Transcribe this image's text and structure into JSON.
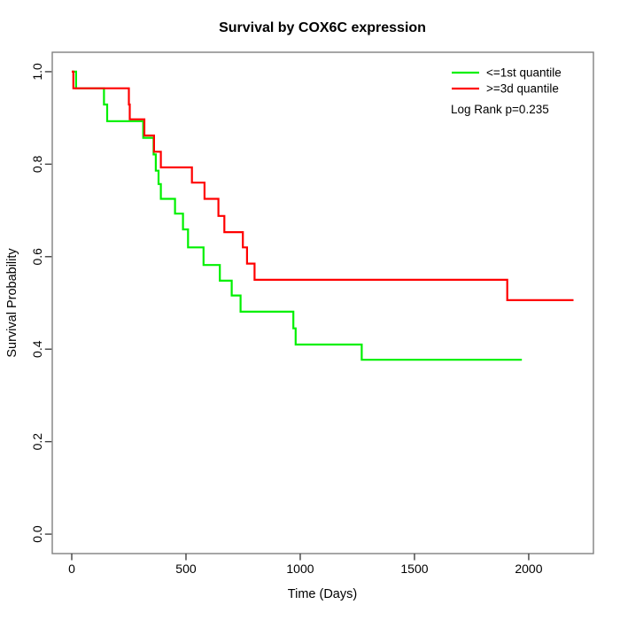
{
  "title": "Survival by COX6C expression",
  "x_axis": {
    "label": "Time (Days)",
    "tick_labels": [
      "0",
      "500",
      "1000",
      "1500",
      "2000"
    ]
  },
  "y_axis": {
    "label": "Survival Probability",
    "tick_labels": [
      "0.0",
      "0.2",
      "0.4",
      "0.6",
      "0.8",
      "1.0"
    ]
  },
  "legend": {
    "entries": [
      {
        "label": "<=1st quantile",
        "color": "#00f000"
      },
      {
        "label": ">=3d quantile",
        "color": "#ff0000"
      }
    ],
    "note": "Log Rank p=0.235"
  },
  "chart_data": {
    "type": "line",
    "subtype": "kaplan-meier-step",
    "title": "Survival by COX6C expression",
    "xlabel": "Time (Days)",
    "ylabel": "Survival Probability",
    "xlim": [
      -88,
      2284
    ],
    "ylim": [
      -0.042,
      1.042
    ],
    "x_ticks": [
      0,
      500,
      1000,
      1500,
      2000
    ],
    "y_ticks": [
      0.0,
      0.2,
      0.4,
      0.6,
      0.8,
      1.0
    ],
    "grid": false,
    "legend_position": "top-right",
    "annotation": "Log Rank p=0.235",
    "series": [
      {
        "name": "<=1st quantile",
        "color": "#00f000",
        "end_time": 1970,
        "points": [
          [
            0,
            1.0
          ],
          [
            19,
            0.964
          ],
          [
            141,
            0.929
          ],
          [
            155,
            0.893
          ],
          [
            313,
            0.857
          ],
          [
            358,
            0.821
          ],
          [
            368,
            0.786
          ],
          [
            380,
            0.757
          ],
          [
            390,
            0.725
          ],
          [
            452,
            0.693
          ],
          [
            487,
            0.659
          ],
          [
            509,
            0.62
          ],
          [
            577,
            0.582
          ],
          [
            648,
            0.548
          ],
          [
            700,
            0.516
          ],
          [
            739,
            0.481
          ],
          [
            970,
            0.445
          ],
          [
            980,
            0.41
          ],
          [
            1269,
            0.377
          ]
        ]
      },
      {
        "name": ">=3d quantile",
        "color": "#ff0000",
        "end_time": 2196,
        "points": [
          [
            0,
            1.0
          ],
          [
            7,
            0.964
          ],
          [
            250,
            0.929
          ],
          [
            254,
            0.897
          ],
          [
            318,
            0.862
          ],
          [
            360,
            0.827
          ],
          [
            390,
            0.793
          ],
          [
            526,
            0.76
          ],
          [
            581,
            0.725
          ],
          [
            642,
            0.688
          ],
          [
            668,
            0.653
          ],
          [
            749,
            0.62
          ],
          [
            767,
            0.585
          ],
          [
            800,
            0.55
          ],
          [
            1906,
            0.506
          ]
        ]
      }
    ]
  },
  "style": {
    "box_color": "#808080",
    "tick_color": "#404040",
    "background": "#ffffff"
  }
}
